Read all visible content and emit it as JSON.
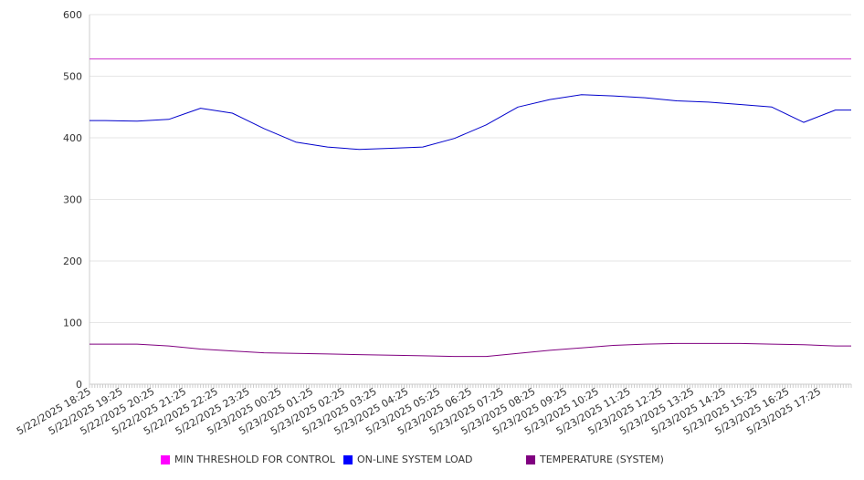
{
  "chart_data": {
    "type": "line",
    "ylim": [
      0,
      600
    ],
    "y_ticks": [
      "0",
      "100",
      "200",
      "300",
      "400",
      "500",
      "600"
    ],
    "x_tick_labels": [
      "5/22/2025 18:25",
      "5/22/2025 19:25",
      "5/22/2025 20:25",
      "5/22/2025 21:25",
      "5/22/2025 22:25",
      "5/22/2025 23:25",
      "5/23/2025 00:25",
      "5/23/2025 01:25",
      "5/23/2025 02:25",
      "5/23/2025 03:25",
      "5/23/2025 04:25",
      "5/23/2025 05:25",
      "5/23/2025 06:25",
      "5/23/2025 07:25",
      "5/23/2025 08:25",
      "5/23/2025 09:25",
      "5/23/2025 10:25",
      "5/23/2025 11:25",
      "5/23/2025 12:25",
      "5/23/2025 13:25",
      "5/23/2025 14:25",
      "5/23/2025 15:25",
      "5/23/2025 16:25",
      "5/23/2025 17:25"
    ],
    "x": [
      "5/22/2025 18:25",
      "5/22/2025 19:25",
      "5/22/2025 20:25",
      "5/22/2025 21:25",
      "5/22/2025 22:25",
      "5/22/2025 23:25",
      "5/23/2025 00:25",
      "5/23/2025 01:25",
      "5/23/2025 02:25",
      "5/23/2025 03:25",
      "5/23/2025 04:25",
      "5/23/2025 05:25",
      "5/23/2025 06:25",
      "5/23/2025 07:25",
      "5/23/2025 08:25",
      "5/23/2025 09:25",
      "5/23/2025 10:25",
      "5/23/2025 11:25",
      "5/23/2025 12:25",
      "5/23/2025 13:25",
      "5/23/2025 14:25",
      "5/23/2025 15:25",
      "5/23/2025 16:25",
      "5/23/2025 17:25"
    ],
    "series": [
      {
        "name": "MIN THRESHOLD FOR CONTROL",
        "color": "#cc33cc",
        "values": [
          528,
          528,
          528,
          528,
          528,
          528,
          528,
          528,
          528,
          528,
          528,
          528,
          528,
          528,
          528,
          528,
          528,
          528,
          528,
          528,
          528,
          528,
          528,
          528
        ]
      },
      {
        "name": "ON-LINE SYSTEM LOAD",
        "color": "#0000cc",
        "values": [
          428,
          427,
          430,
          448,
          440,
          415,
          393,
          385,
          381,
          383,
          385,
          399,
          421,
          450,
          462,
          470,
          468,
          465,
          460,
          458,
          454,
          450,
          425,
          445
        ]
      },
      {
        "name": "TEMPERATURE (SYSTEM)",
        "color": "#800080",
        "values": [
          65,
          65,
          62,
          57,
          54,
          51,
          50,
          49,
          48,
          47,
          46,
          45,
          45,
          50,
          55,
          59,
          63,
          65,
          66,
          66,
          66,
          65,
          64,
          62
        ]
      }
    ],
    "legend_swatch_colors": [
      "#ff00ff",
      "#0000ff",
      "#800080"
    ],
    "grid": true,
    "legend_position": "bottom"
  }
}
